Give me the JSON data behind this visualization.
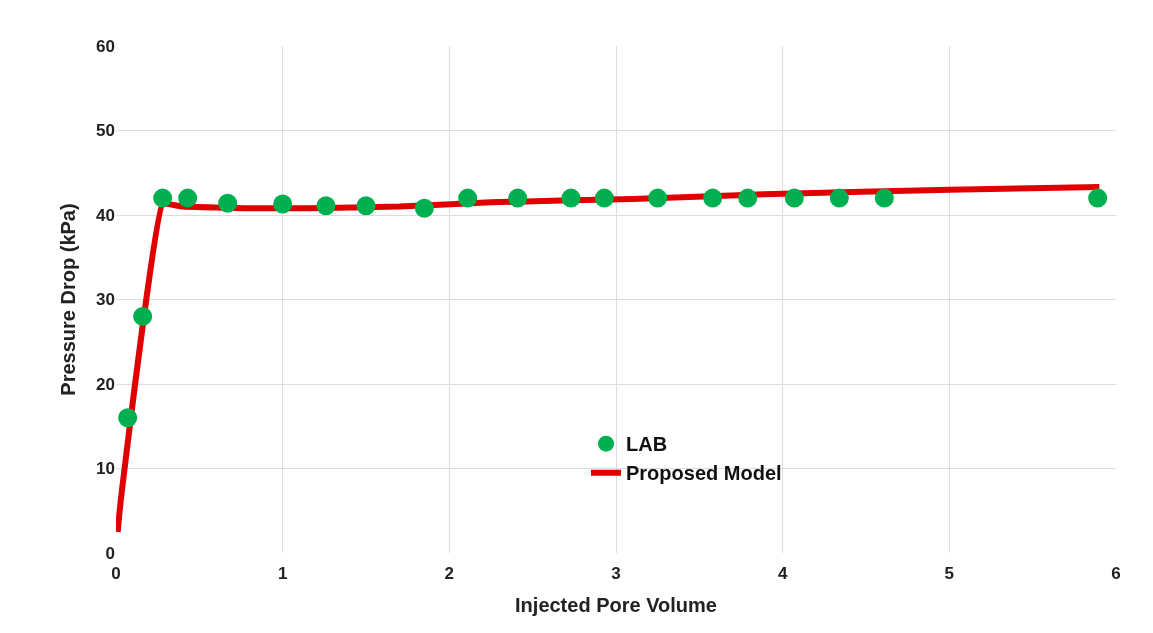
{
  "chart_data": {
    "type": "scatter",
    "xlabel": "Injected Pore Volume",
    "ylabel": "Pressure Drop (kPa)",
    "series": [
      {
        "name": "LAB",
        "color": "#00b050",
        "marker": "circle",
        "x": [
          0.07,
          0.16,
          0.28,
          0.43,
          0.67,
          1.0,
          1.26,
          1.5,
          1.85,
          2.11,
          2.41,
          2.73,
          2.93,
          3.25,
          3.58,
          3.79,
          4.07,
          4.34,
          4.61,
          5.89
        ],
        "values": [
          16,
          28,
          42,
          42,
          41.4,
          41.3,
          41.1,
          41.1,
          40.8,
          42,
          42,
          42,
          42,
          42,
          42,
          42,
          42,
          42,
          42,
          42
        ]
      },
      {
        "name": "Proposed Model",
        "type": "line",
        "color": "#e00000",
        "marker": "none",
        "line_style": "solid",
        "x": [
          0.01,
          0.03,
          0.28,
          0.4,
          0.8,
          1.15,
          1.7,
          2.25,
          3.1,
          3.95,
          5,
          5.9
        ],
        "values": [
          2.5,
          6.5,
          41.3,
          41.0,
          40.8,
          40.8,
          41.0,
          41.5,
          41.9,
          42.5,
          43,
          43.3
        ]
      }
    ],
    "xlim": [
      0,
      6
    ],
    "xticks": [
      0,
      1,
      2,
      3,
      4,
      5,
      6
    ],
    "ylim": [
      0,
      60
    ],
    "yticks": [
      0,
      10,
      20,
      30,
      40,
      50,
      60
    ],
    "grid": true,
    "legend": "bottom center"
  }
}
